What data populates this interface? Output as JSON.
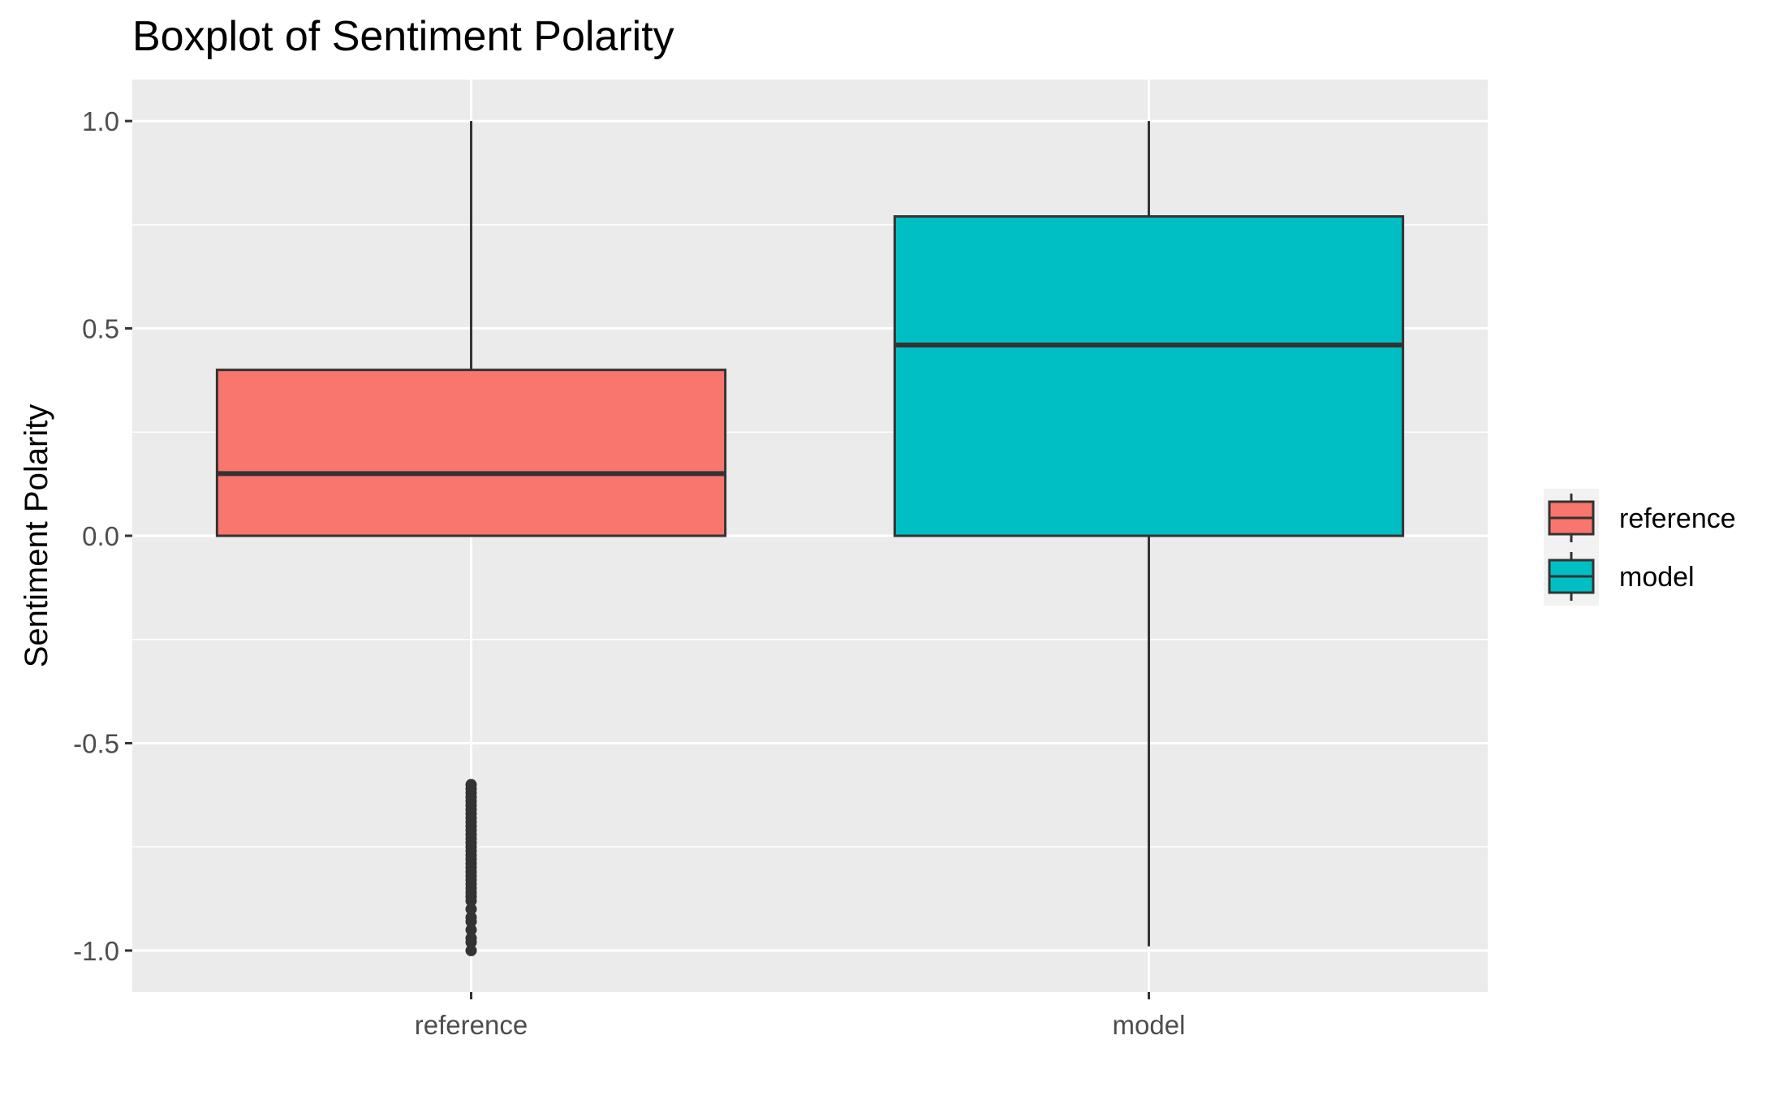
{
  "chart_data": {
    "type": "boxplot",
    "title": "Boxplot of Sentiment Polarity",
    "xlabel": "",
    "ylabel": "Sentiment Polarity",
    "ylim": [
      -1.1,
      1.1
    ],
    "y_ticks": [
      {
        "value": 1.0,
        "label": "1.0"
      },
      {
        "value": 0.5,
        "label": "0.5"
      },
      {
        "value": 0.0,
        "label": "0.0"
      },
      {
        "value": -0.5,
        "label": "-0.5"
      },
      {
        "value": -1.0,
        "label": "-1.0"
      }
    ],
    "y_minor_ticks": [
      0.75,
      0.25,
      -0.25,
      -0.75
    ],
    "categories": [
      "reference",
      "model"
    ],
    "boxes": [
      {
        "name": "reference",
        "whisker_low": 0.0,
        "q1": 0.0,
        "median": 0.15,
        "q3": 0.4,
        "whisker_high": 1.0,
        "outliers": [
          -0.6,
          -0.61,
          -0.62,
          -0.63,
          -0.64,
          -0.65,
          -0.66,
          -0.67,
          -0.68,
          -0.69,
          -0.7,
          -0.71,
          -0.72,
          -0.73,
          -0.74,
          -0.75,
          -0.76,
          -0.77,
          -0.78,
          -0.79,
          -0.8,
          -0.81,
          -0.82,
          -0.83,
          -0.84,
          -0.85,
          -0.86,
          -0.87,
          -0.88,
          -0.9,
          -0.92,
          -0.93,
          -0.95,
          -0.97,
          -0.98,
          -1.0
        ],
        "fill": "#f8766d"
      },
      {
        "name": "model",
        "whisker_low": -0.99,
        "q1": 0.0,
        "median": 0.46,
        "q3": 0.77,
        "whisker_high": 1.0,
        "outliers": [],
        "fill": "#00bfc4"
      }
    ],
    "legend": {
      "position": "right",
      "items": [
        {
          "label": "reference",
          "fill": "#f8766d"
        },
        {
          "label": "model",
          "fill": "#00bfc4"
        }
      ]
    },
    "grid": true,
    "colors": {
      "panel_background": "#ebebeb",
      "grid_major": "#ffffff",
      "grid_minor": "#ffffff",
      "box_outline": "#333333",
      "tick_label": "#4d4d4d",
      "tick_mark": "#333333"
    }
  }
}
